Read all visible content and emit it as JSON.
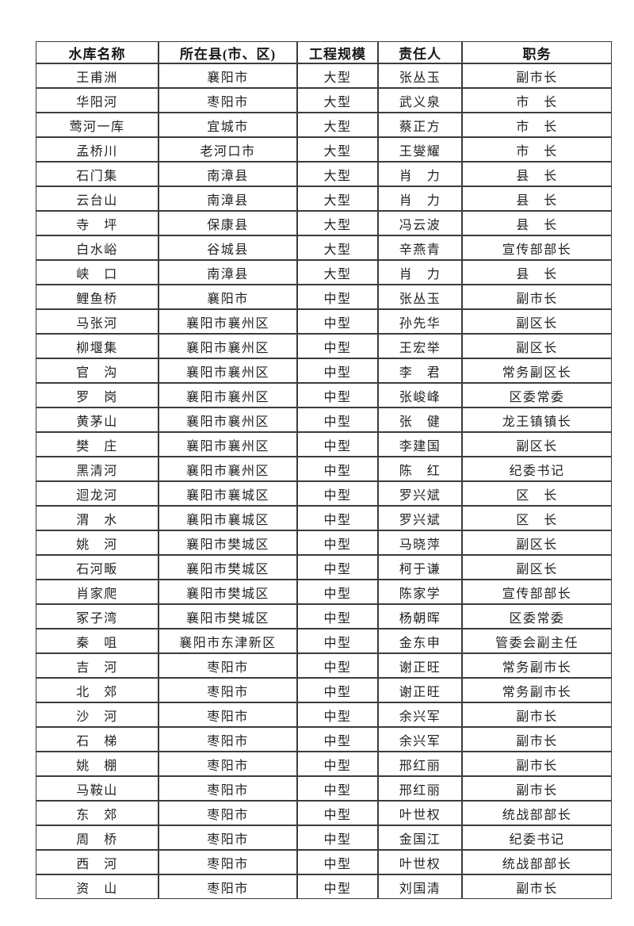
{
  "page": {
    "background_color": "#ffffff",
    "text_color": "#222222",
    "border_color": "#3c3c3c"
  },
  "table": {
    "headers": [
      "水库名称",
      "所在县(市、区)",
      "工程规模",
      "责任人",
      "职务"
    ],
    "rows": [
      [
        "王甫洲",
        "襄阳市",
        "大型",
        "张丛玉",
        "副市长"
      ],
      [
        "华阳河",
        "枣阳市",
        "大型",
        "武义泉",
        "市　长"
      ],
      [
        "莺河一库",
        "宜城市",
        "大型",
        "蔡正方",
        "市　长"
      ],
      [
        "孟桥川",
        "老河口市",
        "大型",
        "王燮耀",
        "市　长"
      ],
      [
        "石门集",
        "南漳县",
        "大型",
        "肖　力",
        "县　长"
      ],
      [
        "云台山",
        "南漳县",
        "大型",
        "肖　力",
        "县　长"
      ],
      [
        "寺　坪",
        "保康县",
        "大型",
        "冯云波",
        "县　长"
      ],
      [
        "白水峪",
        "谷城县",
        "大型",
        "辛燕青",
        "宣传部部长"
      ],
      [
        "峡　口",
        "南漳县",
        "大型",
        "肖　力",
        "县　长"
      ],
      [
        "鲤鱼桥",
        "襄阳市",
        "中型",
        "张丛玉",
        "副市长"
      ],
      [
        "马张河",
        "襄阳市襄州区",
        "中型",
        "孙先华",
        "副区长"
      ],
      [
        "柳堰集",
        "襄阳市襄州区",
        "中型",
        "王宏举",
        "副区长"
      ],
      [
        "官　沟",
        "襄阳市襄州区",
        "中型",
        "李　君",
        "常务副区长"
      ],
      [
        "罗　岗",
        "襄阳市襄州区",
        "中型",
        "张峻峰",
        "区委常委"
      ],
      [
        "黄茅山",
        "襄阳市襄州区",
        "中型",
        "张　健",
        "龙王镇镇长"
      ],
      [
        "樊　庄",
        "襄阳市襄州区",
        "中型",
        "李建国",
        "副区长"
      ],
      [
        "黑清河",
        "襄阳市襄州区",
        "中型",
        "陈　红",
        "纪委书记"
      ],
      [
        "迴龙河",
        "襄阳市襄城区",
        "中型",
        "罗兴斌",
        "区　长"
      ],
      [
        "渭　水",
        "襄阳市襄城区",
        "中型",
        "罗兴斌",
        "区　长"
      ],
      [
        "姚　河",
        "襄阳市樊城区",
        "中型",
        "马晓萍",
        "副区长"
      ],
      [
        "石河畈",
        "襄阳市樊城区",
        "中型",
        "柯于谦",
        "副区长"
      ],
      [
        "肖家爬",
        "襄阳市樊城区",
        "中型",
        "陈家学",
        "宣传部部长"
      ],
      [
        "冢子湾",
        "襄阳市樊城区",
        "中型",
        "杨朝晖",
        "区委常委"
      ],
      [
        "秦　咀",
        "襄阳市东津新区",
        "中型",
        "金东申",
        "管委会副主任"
      ],
      [
        "吉　河",
        "枣阳市",
        "中型",
        "谢正旺",
        "常务副市长"
      ],
      [
        "北　郊",
        "枣阳市",
        "中型",
        "谢正旺",
        "常务副市长"
      ],
      [
        "沙　河",
        "枣阳市",
        "中型",
        "余兴军",
        "副市长"
      ],
      [
        "石　梯",
        "枣阳市",
        "中型",
        "余兴军",
        "副市长"
      ],
      [
        "姚　棚",
        "枣阳市",
        "中型",
        "邢红丽",
        "副市长"
      ],
      [
        "马鞍山",
        "枣阳市",
        "中型",
        "邢红丽",
        "副市长"
      ],
      [
        "东　郊",
        "枣阳市",
        "中型",
        "叶世权",
        "统战部部长"
      ],
      [
        "周　桥",
        "枣阳市",
        "中型",
        "金国江",
        "纪委书记"
      ],
      [
        "西　河",
        "枣阳市",
        "中型",
        "叶世权",
        "统战部部长"
      ],
      [
        "资　山",
        "枣阳市",
        "中型",
        "刘国清",
        "副市长"
      ]
    ]
  }
}
